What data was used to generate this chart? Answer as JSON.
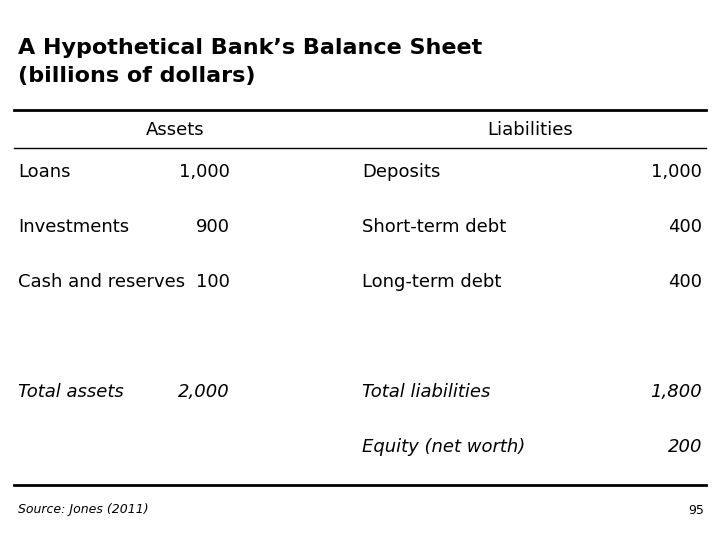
{
  "title_line1": "A Hypothetical Bank’s Balance Sheet",
  "title_line2": "(billions of dollars)",
  "title_fontsize": 16,
  "title_fontweight": "bold",
  "col_header_assets": "Assets",
  "col_header_liabilities": "Liabilities",
  "rows": [
    {
      "asset_label": "Loans",
      "asset_value": "1,000",
      "liability_label": "Deposits",
      "liability_value": "1,000",
      "italic": false
    },
    {
      "asset_label": "Investments",
      "asset_value": "900",
      "liability_label": "Short-term debt",
      "liability_value": "400",
      "italic": false
    },
    {
      "asset_label": "Cash and reserves",
      "asset_value": "100",
      "liability_label": "Long-term debt",
      "liability_value": "400",
      "italic": false
    },
    {
      "asset_label": "",
      "asset_value": "",
      "liability_label": "",
      "liability_value": "",
      "italic": false
    },
    {
      "asset_label": "Total assets",
      "asset_value": "2,000",
      "liability_label": "Total liabilities",
      "liability_value": "1,800",
      "italic": true
    },
    {
      "asset_label": "",
      "asset_value": "",
      "liability_label": "Equity (net worth)",
      "liability_value": "200",
      "italic": true
    }
  ],
  "source_text": "Source: Jones (2011)",
  "page_number": "95",
  "bg_color": "#ffffff",
  "text_color": "#000000",
  "fontsize_body": 13,
  "fontsize_header": 13,
  "fontsize_source": 9,
  "thick_lw": 2.0,
  "thin_lw": 1.0
}
